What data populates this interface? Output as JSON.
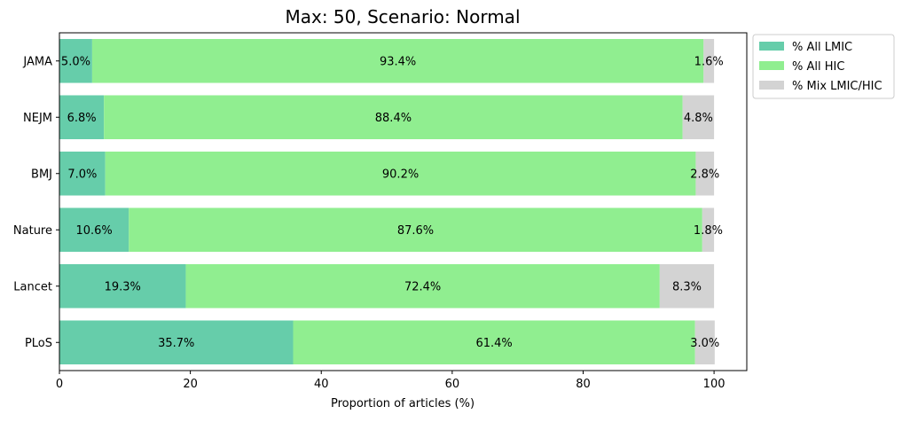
{
  "chart_data": {
    "type": "bar",
    "orientation": "horizontal",
    "stacked": true,
    "title": "Max: 50, Scenario: Normal",
    "xlabel": "Proportion of articles (%)",
    "ylabel": "",
    "xlim": [
      0,
      105
    ],
    "x_ticks": [
      0,
      20,
      40,
      60,
      80,
      100
    ],
    "grid": false,
    "legend_position": "outside-top-right",
    "categories": [
      "JAMA",
      "NEJM",
      "BMJ",
      "Nature",
      "Lancet",
      "PLoS"
    ],
    "series": [
      {
        "name": "% All LMIC",
        "color": "#66cdaa",
        "values": [
          5.0,
          6.8,
          7.0,
          10.6,
          19.3,
          35.7
        ],
        "labels": [
          "5.0%",
          "6.8%",
          "7.0%",
          "10.6%",
          "19.3%",
          "35.7%"
        ]
      },
      {
        "name": "% All HIC",
        "color": "#90ee90",
        "values": [
          93.4,
          88.4,
          90.2,
          87.6,
          72.4,
          61.4
        ],
        "labels": [
          "93.4%",
          "88.4%",
          "90.2%",
          "87.6%",
          "72.4%",
          "61.4%"
        ]
      },
      {
        "name": "% Mix LMIC/HIC",
        "color": "#d3d3d3",
        "values": [
          1.6,
          4.8,
          2.8,
          1.8,
          8.3,
          3.0
        ],
        "labels": [
          "1.6%",
          "4.8%",
          "2.8%",
          "1.8%",
          "8.3%",
          "3.0%"
        ]
      }
    ]
  }
}
